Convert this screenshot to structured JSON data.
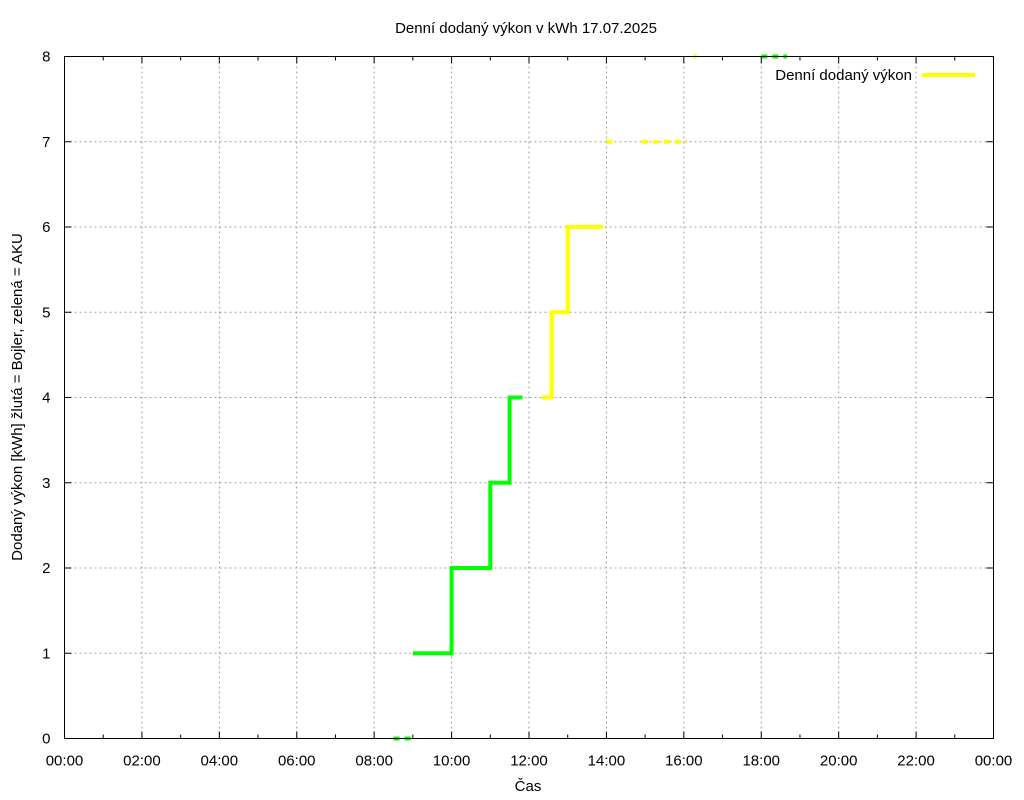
{
  "chart_data": {
    "type": "line",
    "title": "Denní dodaný výkon v kWh 17.07.2025",
    "xlabel": "Čas",
    "ylabel": "Dodaný výkon [kWh]  žlutá = Bojler, zelená = AKU",
    "xlim": [
      "00:00",
      "24:00"
    ],
    "ylim": [
      0,
      8
    ],
    "x_ticks": [
      "00:00",
      "02:00",
      "04:00",
      "06:00",
      "08:00",
      "10:00",
      "12:00",
      "14:00",
      "16:00",
      "18:00",
      "20:00",
      "22:00",
      "00:00"
    ],
    "y_ticks": [
      "0",
      "1",
      "2",
      "3",
      "4",
      "5",
      "6",
      "7",
      "8"
    ],
    "grid": true,
    "legend": {
      "position": "top-right",
      "entries": [
        {
          "label": "Denní dodaný výkon",
          "color": "#ffff00"
        }
      ]
    },
    "colors": {
      "bojler": "#ffff00",
      "aku": "#00ff00"
    },
    "series": [
      {
        "color": "#00ff00",
        "style": "solid",
        "x": [
          "09:00",
          "10:00",
          "10:00",
          "11:00",
          "11:00",
          "11:30",
          "11:30",
          "11:50"
        ],
        "y": [
          1,
          1,
          2,
          2,
          3,
          3,
          4,
          4
        ]
      },
      {
        "color": "#ffff00",
        "style": "solid",
        "x": [
          "12:20",
          "12:35",
          "12:35",
          "13:00",
          "13:00",
          "13:55"
        ],
        "y": [
          4,
          4,
          5,
          5,
          6,
          6
        ]
      },
      {
        "color": "#00ff00",
        "style": "dashed",
        "x": [
          "08:30",
          "09:00"
        ],
        "y": [
          0,
          0
        ]
      },
      {
        "color": "#ffff00",
        "style": "dashed",
        "x": [
          "14:00",
          "14:15"
        ],
        "y": [
          7,
          7
        ]
      },
      {
        "color": "#ffff00",
        "style": "dashed",
        "x": [
          "14:55",
          "16:05"
        ],
        "y": [
          7,
          7
        ]
      },
      {
        "color": "#ffff00",
        "style": "dashed",
        "x": [
          "16:15",
          "16:20"
        ],
        "y": [
          8,
          8
        ]
      },
      {
        "color": "#00ff00",
        "style": "dashed",
        "x": [
          "18:00",
          "18:40"
        ],
        "y": [
          8,
          8
        ]
      }
    ]
  }
}
